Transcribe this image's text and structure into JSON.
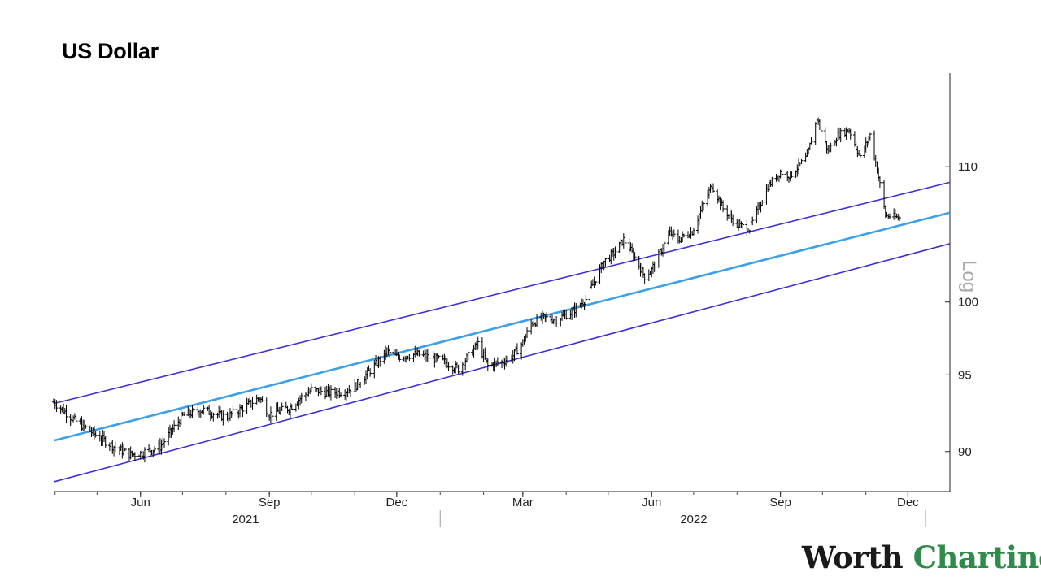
{
  "chart_data": {
    "type": "ohlc",
    "title": "US Dollar",
    "y_scale": "log",
    "y_scale_label": "Log",
    "ylim": [
      87.5,
      117.5
    ],
    "y_ticks": [
      90,
      95,
      100,
      110
    ],
    "x_range": [
      "2021-03-31",
      "2022-12-31"
    ],
    "x_ticks": [
      {
        "date": "2021-06-01",
        "label": "Jun"
      },
      {
        "date": "2021-09-01",
        "label": "Sep"
      },
      {
        "date": "2021-12-01",
        "label": "Dec"
      },
      {
        "date": "2022-03-01",
        "label": "Mar"
      },
      {
        "date": "2022-06-01",
        "label": "Jun"
      },
      {
        "date": "2022-09-01",
        "label": "Sep"
      },
      {
        "date": "2022-12-01",
        "label": "Dec"
      }
    ],
    "year_labels": [
      {
        "label": "2021",
        "date": "2021-08-15"
      },
      {
        "label": "2022",
        "date": "2022-07-01"
      }
    ],
    "year_separators": [
      "2022-01-01",
      "2022-12-31"
    ],
    "grid": false,
    "colors": {
      "price": "#000000",
      "channel": "#3b2fd8",
      "midline": "#3ba0e8"
    },
    "channel": {
      "start_date": "2021-03-31",
      "end_date": "2022-12-31",
      "upper": [
        93.1,
        108.8
      ],
      "mid": [
        90.7,
        106.5
      ],
      "lower": [
        88.1,
        104.2
      ]
    },
    "price_series": {
      "name": "US Dollar",
      "x": [
        "2021-03-31",
        "2021-04-15",
        "2021-05-01",
        "2021-05-15",
        "2021-05-25",
        "2021-06-01",
        "2021-06-15",
        "2021-07-01",
        "2021-07-15",
        "2021-08-01",
        "2021-08-15",
        "2021-08-25",
        "2021-09-01",
        "2021-09-15",
        "2021-09-25",
        "2021-10-01",
        "2021-10-15",
        "2021-10-25",
        "2021-11-01",
        "2021-11-15",
        "2021-11-24",
        "2021-12-01",
        "2021-12-15",
        "2022-01-01",
        "2022-01-14",
        "2022-01-28",
        "2022-02-04",
        "2022-02-15",
        "2022-02-22",
        "2022-03-01",
        "2022-03-07",
        "2022-03-15",
        "2022-03-25",
        "2022-04-05",
        "2022-04-15",
        "2022-04-28",
        "2022-05-05",
        "2022-05-12",
        "2022-05-20",
        "2022-05-27",
        "2022-06-01",
        "2022-06-14",
        "2022-06-20",
        "2022-06-30",
        "2022-07-14",
        "2022-07-22",
        "2022-08-01",
        "2022-08-10",
        "2022-08-23",
        "2022-09-01",
        "2022-09-08",
        "2022-09-20",
        "2022-09-27",
        "2022-10-05",
        "2022-10-12",
        "2022-10-20",
        "2022-10-28",
        "2022-11-04",
        "2022-11-10",
        "2022-11-15",
        "2022-11-25"
      ],
      "y": [
        93.2,
        92.0,
        91.0,
        90.2,
        89.8,
        89.9,
        90.3,
        92.3,
        92.7,
        92.2,
        92.9,
        93.5,
        92.4,
        92.8,
        93.6,
        94.0,
        93.8,
        93.9,
        94.2,
        95.6,
        96.6,
        96.2,
        96.4,
        96.0,
        95.4,
        97.1,
        95.6,
        95.9,
        96.3,
        97.2,
        98.5,
        98.9,
        98.8,
        99.3,
        100.2,
        102.9,
        103.5,
        104.5,
        103.2,
        101.8,
        102.3,
        105.0,
        104.5,
        105.1,
        108.6,
        106.8,
        105.6,
        105.3,
        108.5,
        109.6,
        109.3,
        110.8,
        113.8,
        111.2,
        112.5,
        112.9,
        110.7,
        112.5,
        109.2,
        106.3,
        106.1
      ]
    }
  }
}
